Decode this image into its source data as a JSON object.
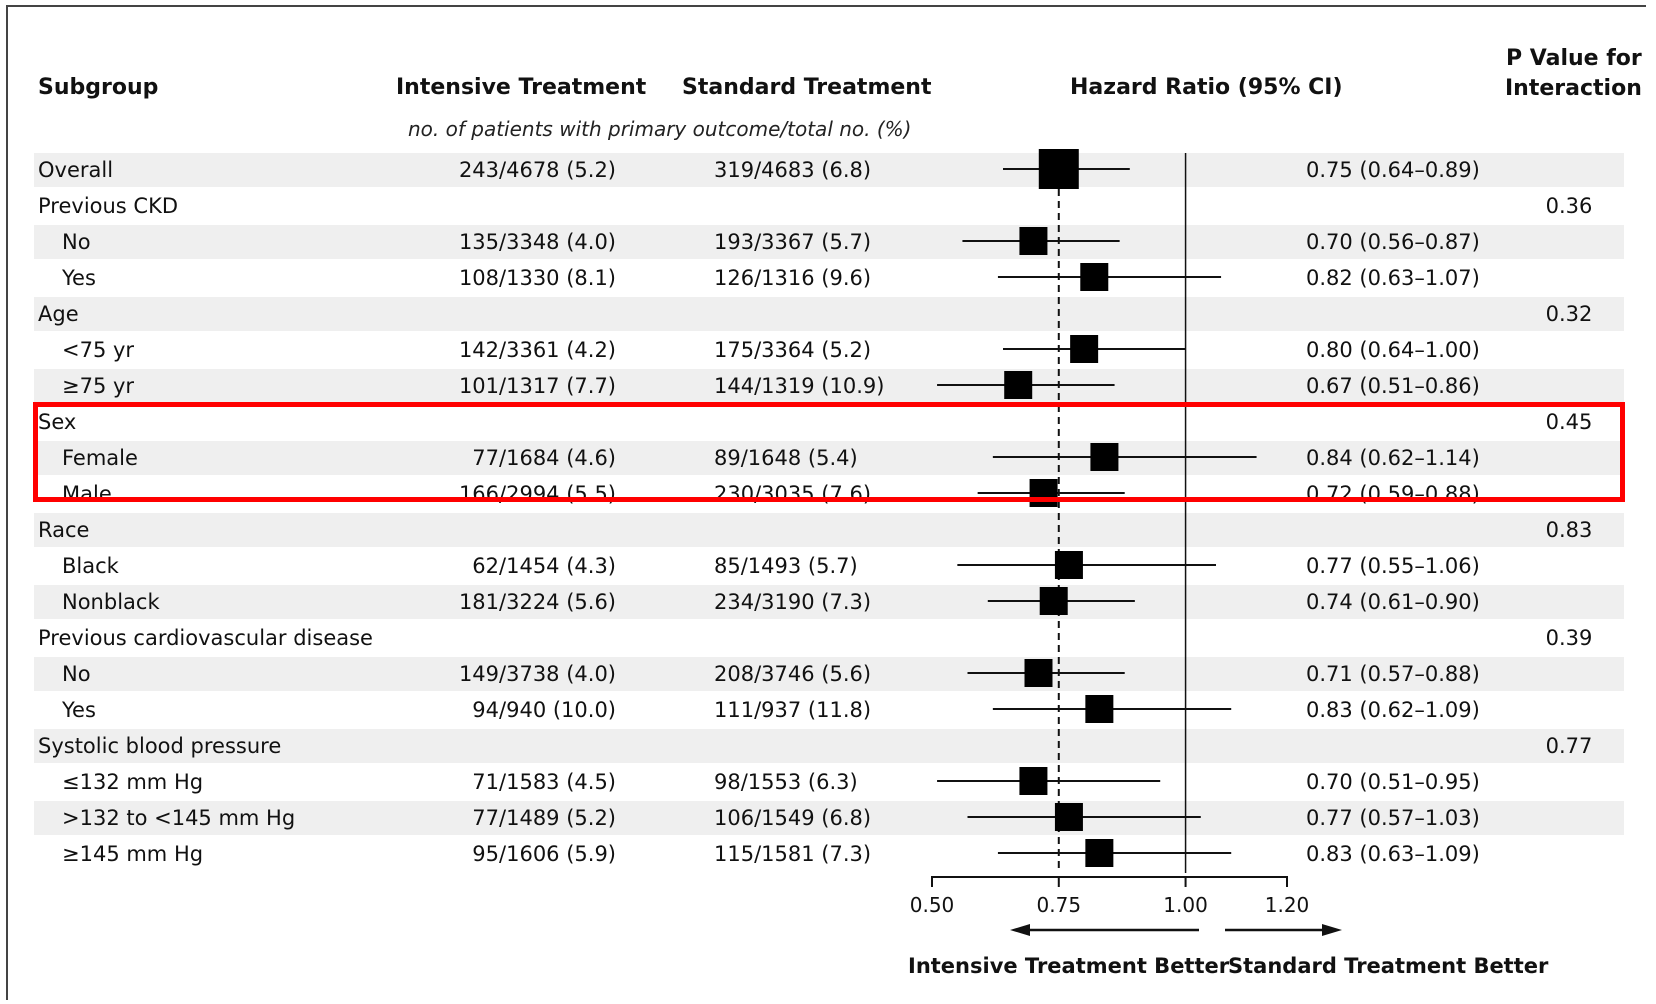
{
  "headers": {
    "subgroup": "Subgroup",
    "intensive": "Intensive Treatment",
    "standard": "Standard Treatment",
    "hazard": "Hazard Ratio (95% CI)",
    "p_line1": "P Value for",
    "p_line2": "Interaction",
    "subheader": "no. of patients with primary outcome/total no. (%)"
  },
  "footer": {
    "left": "Intensive Treatment Better",
    "right": "Standard Treatment Better"
  },
  "chart_data": {
    "type": "forest",
    "x_ticks": [
      "0.50",
      "0.75",
      "1.00",
      "1.20"
    ],
    "xlim": [
      0.5,
      1.2
    ],
    "reference_line": 1.0,
    "overall_line": 0.75,
    "rows": [
      {
        "label": "Overall",
        "indent": false,
        "shaded": true,
        "intensive": "243/4678 (5.2)",
        "standard": "319/4683 (6.8)",
        "hr": "0.75 (0.64–0.89)",
        "est": 0.75,
        "lo": 0.64,
        "hi": 0.89,
        "p": ""
      },
      {
        "label": "Previous CKD",
        "indent": false,
        "shaded": false,
        "intensive": "",
        "standard": "",
        "hr": "",
        "p": "0.36"
      },
      {
        "label": "No",
        "indent": true,
        "shaded": true,
        "intensive": "135/3348 (4.0)",
        "standard": "193/3367 (5.7)",
        "hr": "0.70 (0.56–0.87)",
        "est": 0.7,
        "lo": 0.56,
        "hi": 0.87,
        "p": ""
      },
      {
        "label": "Yes",
        "indent": true,
        "shaded": false,
        "intensive": "108/1330 (8.1)",
        "standard": "126/1316 (9.6)",
        "hr": "0.82 (0.63–1.07)",
        "est": 0.82,
        "lo": 0.63,
        "hi": 1.07,
        "p": ""
      },
      {
        "label": "Age",
        "indent": false,
        "shaded": true,
        "intensive": "",
        "standard": "",
        "hr": "",
        "p": "0.32"
      },
      {
        "label": "<75 yr",
        "indent": true,
        "shaded": false,
        "intensive": "142/3361 (4.2)",
        "standard": "175/3364 (5.2)",
        "hr": "0.80 (0.64–1.00)",
        "est": 0.8,
        "lo": 0.64,
        "hi": 1.0,
        "p": ""
      },
      {
        "label": "≥75 yr",
        "indent": true,
        "shaded": true,
        "intensive": "101/1317 (7.7)",
        "standard": "144/1319 (10.9)",
        "hr": "0.67 (0.51–0.86)",
        "est": 0.67,
        "lo": 0.51,
        "hi": 0.86,
        "p": ""
      },
      {
        "label": "Sex",
        "indent": false,
        "shaded": false,
        "intensive": "",
        "standard": "",
        "hr": "",
        "p": "0.45"
      },
      {
        "label": "Female",
        "indent": true,
        "shaded": true,
        "intensive": "77/1684 (4.6)",
        "standard": "89/1648 (5.4)",
        "hr": "0.84 (0.62–1.14)",
        "est": 0.84,
        "lo": 0.62,
        "hi": 1.14,
        "p": ""
      },
      {
        "label": "Male",
        "indent": true,
        "shaded": false,
        "intensive": "166/2994 (5.5)",
        "standard": "230/3035 (7.6)",
        "hr": "0.72 (0.59–0.88)",
        "est": 0.72,
        "lo": 0.59,
        "hi": 0.88,
        "p": ""
      },
      {
        "label": "Race",
        "indent": false,
        "shaded": true,
        "intensive": "",
        "standard": "",
        "hr": "",
        "p": "0.83"
      },
      {
        "label": "Black",
        "indent": true,
        "shaded": false,
        "intensive": "62/1454 (4.3)",
        "standard": "85/1493 (5.7)",
        "hr": "0.77 (0.55–1.06)",
        "est": 0.77,
        "lo": 0.55,
        "hi": 1.06,
        "p": ""
      },
      {
        "label": "Nonblack",
        "indent": true,
        "shaded": true,
        "intensive": "181/3224 (5.6)",
        "standard": "234/3190 (7.3)",
        "hr": "0.74 (0.61–0.90)",
        "est": 0.74,
        "lo": 0.61,
        "hi": 0.9,
        "p": ""
      },
      {
        "label": "Previous cardiovascular disease",
        "indent": false,
        "shaded": false,
        "intensive": "",
        "standard": "",
        "hr": "",
        "p": "0.39"
      },
      {
        "label": "No",
        "indent": true,
        "shaded": true,
        "intensive": "149/3738 (4.0)",
        "standard": "208/3746 (5.6)",
        "hr": "0.71 (0.57–0.88)",
        "est": 0.71,
        "lo": 0.57,
        "hi": 0.88,
        "p": ""
      },
      {
        "label": "Yes",
        "indent": true,
        "shaded": false,
        "intensive": "94/940 (10.0)",
        "standard": "111/937 (11.8)",
        "hr": "0.83 (0.62–1.09)",
        "est": 0.83,
        "lo": 0.62,
        "hi": 1.09,
        "p": ""
      },
      {
        "label": "Systolic blood pressure",
        "indent": false,
        "shaded": true,
        "intensive": "",
        "standard": "",
        "hr": "",
        "p": "0.77"
      },
      {
        "label": "≤132 mm Hg",
        "indent": true,
        "shaded": false,
        "intensive": "71/1583 (4.5)",
        "standard": "98/1553 (6.3)",
        "hr": "0.70 (0.51–0.95)",
        "est": 0.7,
        "lo": 0.51,
        "hi": 0.95,
        "p": ""
      },
      {
        "label": ">132 to <145 mm Hg",
        "indent": true,
        "shaded": true,
        "intensive": "77/1489 (5.2)",
        "standard": "106/1549 (6.8)",
        "hr": "0.77 (0.57–1.03)",
        "est": 0.77,
        "lo": 0.57,
        "hi": 1.03,
        "p": ""
      },
      {
        "label": "≥145 mm Hg",
        "indent": true,
        "shaded": false,
        "intensive": "95/1606 (5.9)",
        "standard": "115/1581 (7.3)",
        "hr": "0.83 (0.63–1.09)",
        "est": 0.83,
        "lo": 0.63,
        "hi": 1.09,
        "p": ""
      }
    ]
  },
  "highlight": {
    "color": "#ff0000"
  }
}
